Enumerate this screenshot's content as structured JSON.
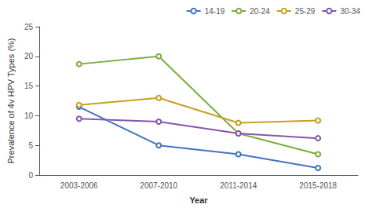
{
  "chart_data": {
    "type": "line",
    "categories": [
      "2003-2006",
      "2007-2010",
      "2011-2014",
      "2015-2018"
    ],
    "series": [
      {
        "name": "14-19",
        "color": "#4472C4",
        "marker": "circle",
        "values": [
          11.5,
          5.0,
          3.5,
          1.2
        ]
      },
      {
        "name": "20-24",
        "color": "#7AAF3F",
        "marker": "circle",
        "values": [
          18.7,
          20.0,
          7.0,
          3.5
        ]
      },
      {
        "name": "25-29",
        "color": "#C8A020",
        "marker": "circle",
        "values": [
          11.8,
          13.0,
          8.8,
          9.2
        ]
      },
      {
        "name": "30-34",
        "color": "#8855AA",
        "marker": "circle",
        "values": [
          9.5,
          9.0,
          7.0,
          6.2
        ]
      }
    ],
    "xlabel": "Year",
    "ylabel": "Prevalence of 4v HPV Types (%)",
    "ylim": [
      0,
      25
    ],
    "yticks": [
      0,
      5,
      10,
      15,
      20,
      25
    ],
    "grid": false,
    "legend": "upper right"
  }
}
